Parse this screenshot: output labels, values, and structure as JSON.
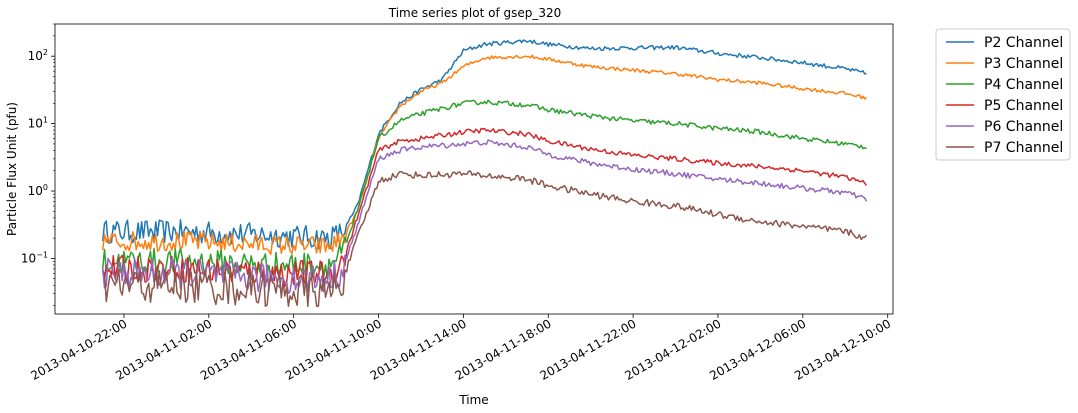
{
  "chart_data": {
    "type": "line",
    "title": "Time series plot of gsep_320",
    "xlabel": "Time",
    "ylabel": "Particle Flux Unit (pfu)",
    "yscale": "log",
    "ylim": [
      0.015,
      300
    ],
    "xlim": [
      "2013-04-10T18:45",
      "2013-04-12T10:15"
    ],
    "grid": false,
    "legend_position": "outside-right",
    "x_ticks": [
      {
        "t": "2013-04-10T22:00",
        "label": "2013-04-10-22:00"
      },
      {
        "t": "2013-04-11T02:00",
        "label": "2013-04-11-02:00"
      },
      {
        "t": "2013-04-11T06:00",
        "label": "2013-04-11-06:00"
      },
      {
        "t": "2013-04-11T10:00",
        "label": "2013-04-11-10:00"
      },
      {
        "t": "2013-04-11T14:00",
        "label": "2013-04-11-14:00"
      },
      {
        "t": "2013-04-11T18:00",
        "label": "2013-04-11-18:00"
      },
      {
        "t": "2013-04-11T22:00",
        "label": "2013-04-11-22:00"
      },
      {
        "t": "2013-04-12T02:00",
        "label": "2013-04-12-02:00"
      },
      {
        "t": "2013-04-12T06:00",
        "label": "2013-04-12-06:00"
      },
      {
        "t": "2013-04-12T10:00",
        "label": "2013-04-12-10:00"
      }
    ],
    "y_ticks": [
      {
        "v": 0.1,
        "base": "10",
        "exp": "−1"
      },
      {
        "v": 1,
        "base": "10",
        "exp": "0"
      },
      {
        "v": 10,
        "base": "10",
        "exp": "1"
      },
      {
        "v": 100,
        "base": "10",
        "exp": "2"
      }
    ],
    "series": [
      {
        "name": "P2 Channel",
        "color": "#1f77b4",
        "noise": 0.35,
        "x": [
          "2013-04-10T21:00",
          "2013-04-11T01:00",
          "2013-04-11T05:00",
          "2013-04-11T07:40",
          "2013-04-11T08:20",
          "2013-04-11T09:00",
          "2013-04-11T10:00",
          "2013-04-11T11:00",
          "2013-04-11T12:00",
          "2013-04-11T13:00",
          "2013-04-11T14:00",
          "2013-04-11T15:00",
          "2013-04-11T17:00",
          "2013-04-11T18:00",
          "2013-04-11T20:00",
          "2013-04-12T00:00",
          "2013-04-12T02:00",
          "2013-04-12T04:00",
          "2013-04-12T06:00",
          "2013-04-12T08:00",
          "2013-04-12T09:00"
        ],
        "y": [
          0.25,
          0.25,
          0.22,
          0.2,
          0.25,
          0.6,
          7,
          20,
          32,
          45,
          120,
          150,
          170,
          150,
          130,
          135,
          110,
          95,
          80,
          65,
          55
        ]
      },
      {
        "name": "P3 Channel",
        "color": "#ff7f0e",
        "noise": 0.3,
        "x": [
          "2013-04-10T21:00",
          "2013-04-11T01:00",
          "2013-04-11T05:00",
          "2013-04-11T07:40",
          "2013-04-11T08:20",
          "2013-04-11T09:00",
          "2013-04-11T10:00",
          "2013-04-11T11:00",
          "2013-04-11T12:00",
          "2013-04-11T13:00",
          "2013-04-11T14:00",
          "2013-04-11T15:00",
          "2013-04-11T17:00",
          "2013-04-11T18:00",
          "2013-04-11T20:00",
          "2013-04-12T00:00",
          "2013-04-12T02:00",
          "2013-04-12T04:00",
          "2013-04-12T06:00",
          "2013-04-12T08:00",
          "2013-04-12T09:00"
        ],
        "y": [
          0.18,
          0.18,
          0.16,
          0.15,
          0.2,
          0.5,
          6,
          18,
          30,
          40,
          70,
          95,
          100,
          90,
          70,
          55,
          45,
          40,
          33,
          28,
          24
        ]
      },
      {
        "name": "P4 Channel",
        "color": "#2ca02c",
        "noise": 0.4,
        "x": [
          "2013-04-10T21:00",
          "2013-04-11T01:00",
          "2013-04-11T05:00",
          "2013-04-11T07:40",
          "2013-04-11T08:20",
          "2013-04-11T09:00",
          "2013-04-11T10:00",
          "2013-04-11T11:00",
          "2013-04-11T12:00",
          "2013-04-11T14:00",
          "2013-04-11T15:00",
          "2013-04-11T17:00",
          "2013-04-11T18:00",
          "2013-04-11T20:00",
          "2013-04-11T22:00",
          "2013-04-12T00:00",
          "2013-04-12T02:00",
          "2013-04-12T04:00",
          "2013-04-12T06:00",
          "2013-04-12T08:00",
          "2013-04-12T09:00"
        ],
        "y": [
          0.09,
          0.09,
          0.08,
          0.08,
          0.12,
          0.5,
          6,
          11,
          14,
          20,
          21,
          19,
          16,
          13,
          11,
          10,
          8.5,
          7.5,
          6,
          5,
          4.5
        ]
      },
      {
        "name": "P5 Channel",
        "color": "#d62728",
        "noise": 0.4,
        "x": [
          "2013-04-10T21:00",
          "2013-04-11T01:00",
          "2013-04-11T05:00",
          "2013-04-11T07:40",
          "2013-04-11T08:20",
          "2013-04-11T09:00",
          "2013-04-11T10:00",
          "2013-04-11T11:00",
          "2013-04-11T12:00",
          "2013-04-11T14:00",
          "2013-04-11T15:00",
          "2013-04-11T17:00",
          "2013-04-11T18:00",
          "2013-04-11T20:00",
          "2013-04-11T22:00",
          "2013-04-12T00:00",
          "2013-04-12T02:00",
          "2013-04-12T04:00",
          "2013-04-12T06:00",
          "2013-04-12T08:00",
          "2013-04-12T09:00"
        ],
        "y": [
          0.07,
          0.07,
          0.06,
          0.06,
          0.09,
          0.4,
          4,
          5.5,
          6,
          7.5,
          8,
          7,
          5.5,
          4.2,
          3.4,
          3,
          2.6,
          2.3,
          2,
          1.6,
          1.3
        ]
      },
      {
        "name": "P6 Channel",
        "color": "#9467bd",
        "noise": 0.45,
        "x": [
          "2013-04-10T21:00",
          "2013-04-11T01:00",
          "2013-04-11T05:00",
          "2013-04-11T07:40",
          "2013-04-11T08:20",
          "2013-04-11T09:00",
          "2013-04-11T10:00",
          "2013-04-11T11:00",
          "2013-04-11T12:00",
          "2013-04-11T14:00",
          "2013-04-11T15:00",
          "2013-04-11T17:00",
          "2013-04-11T18:00",
          "2013-04-11T20:00",
          "2013-04-11T22:00",
          "2013-04-12T00:00",
          "2013-04-12T02:00",
          "2013-04-12T04:00",
          "2013-04-12T06:00",
          "2013-04-12T08:00",
          "2013-04-12T09:00"
        ],
        "y": [
          0.06,
          0.06,
          0.05,
          0.05,
          0.07,
          0.3,
          3,
          4,
          4.5,
          5,
          5.3,
          4.5,
          3.5,
          2.6,
          2.1,
          1.8,
          1.5,
          1.3,
          1.1,
          0.95,
          0.75
        ]
      },
      {
        "name": "P7 Channel",
        "color": "#8c564b",
        "noise": 0.55,
        "x": [
          "2013-04-10T21:00",
          "2013-04-11T01:00",
          "2013-04-11T05:00",
          "2013-04-11T07:40",
          "2013-04-11T08:20",
          "2013-04-11T09:00",
          "2013-04-11T10:00",
          "2013-04-11T11:00",
          "2013-04-11T12:00",
          "2013-04-11T14:00",
          "2013-04-11T15:00",
          "2013-04-11T17:00",
          "2013-04-11T18:00",
          "2013-04-11T20:00",
          "2013-04-11T22:00",
          "2013-04-12T00:00",
          "2013-04-12T02:00",
          "2013-04-12T04:00",
          "2013-04-12T06:00",
          "2013-04-12T08:00",
          "2013-04-12T09:00"
        ],
        "y": [
          0.04,
          0.04,
          0.035,
          0.03,
          0.05,
          0.2,
          1.4,
          1.8,
          1.7,
          1.8,
          1.7,
          1.5,
          1.2,
          0.9,
          0.7,
          0.6,
          0.45,
          0.35,
          0.3,
          0.25,
          0.2
        ]
      }
    ]
  }
}
